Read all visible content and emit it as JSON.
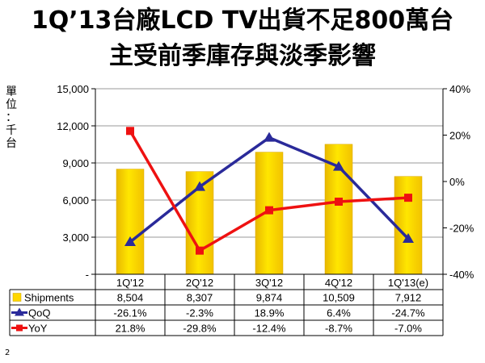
{
  "slide": {
    "title_line1": "1Q’13台廠LCD TV出貨不足800萬台",
    "title_line2": "主受前季庫存與淡季影響",
    "page_number": "2"
  },
  "chart_data": {
    "type": "bar",
    "categories": [
      "1Q'12",
      "2Q'12",
      "3Q'12",
      "4Q'12",
      "1Q'13(e)"
    ],
    "ylabel": "單位：千台",
    "y_left": {
      "ticks": [
        "-",
        "3,000",
        "6,000",
        "9,000",
        "12,000",
        "15,000"
      ],
      "ylim": [
        0,
        15000
      ]
    },
    "y_right": {
      "ticks": [
        "-40%",
        "-20%",
        "0%",
        "20%",
        "40%"
      ],
      "ylim": [
        -40,
        40
      ]
    },
    "series": [
      {
        "name": "Shipments",
        "type": "bar",
        "axis": "left",
        "color": "#FFD700",
        "values": [
          8504,
          8307,
          9874,
          10509,
          7912
        ],
        "labels": [
          "8,504",
          "8,307",
          "9,874",
          "10,509",
          "7,912"
        ]
      },
      {
        "name": "QoQ",
        "type": "line",
        "axis": "right",
        "color": "#2A2A9A",
        "marker": "triangle",
        "values": [
          -26.1,
          -2.3,
          18.9,
          6.4,
          -24.7
        ],
        "labels": [
          "-26.1%",
          "-2.3%",
          "18.9%",
          "6.4%",
          "-24.7%"
        ]
      },
      {
        "name": "YoY",
        "type": "line",
        "axis": "right",
        "color": "#EE1111",
        "marker": "square",
        "values": [
          21.8,
          -29.8,
          -12.4,
          -8.7,
          -7.0
        ],
        "labels": [
          "21.8%",
          "-29.8%",
          "-12.4%",
          "-8.7%",
          "-7.0%"
        ]
      }
    ],
    "grid": true,
    "legend": "data-table-below"
  }
}
